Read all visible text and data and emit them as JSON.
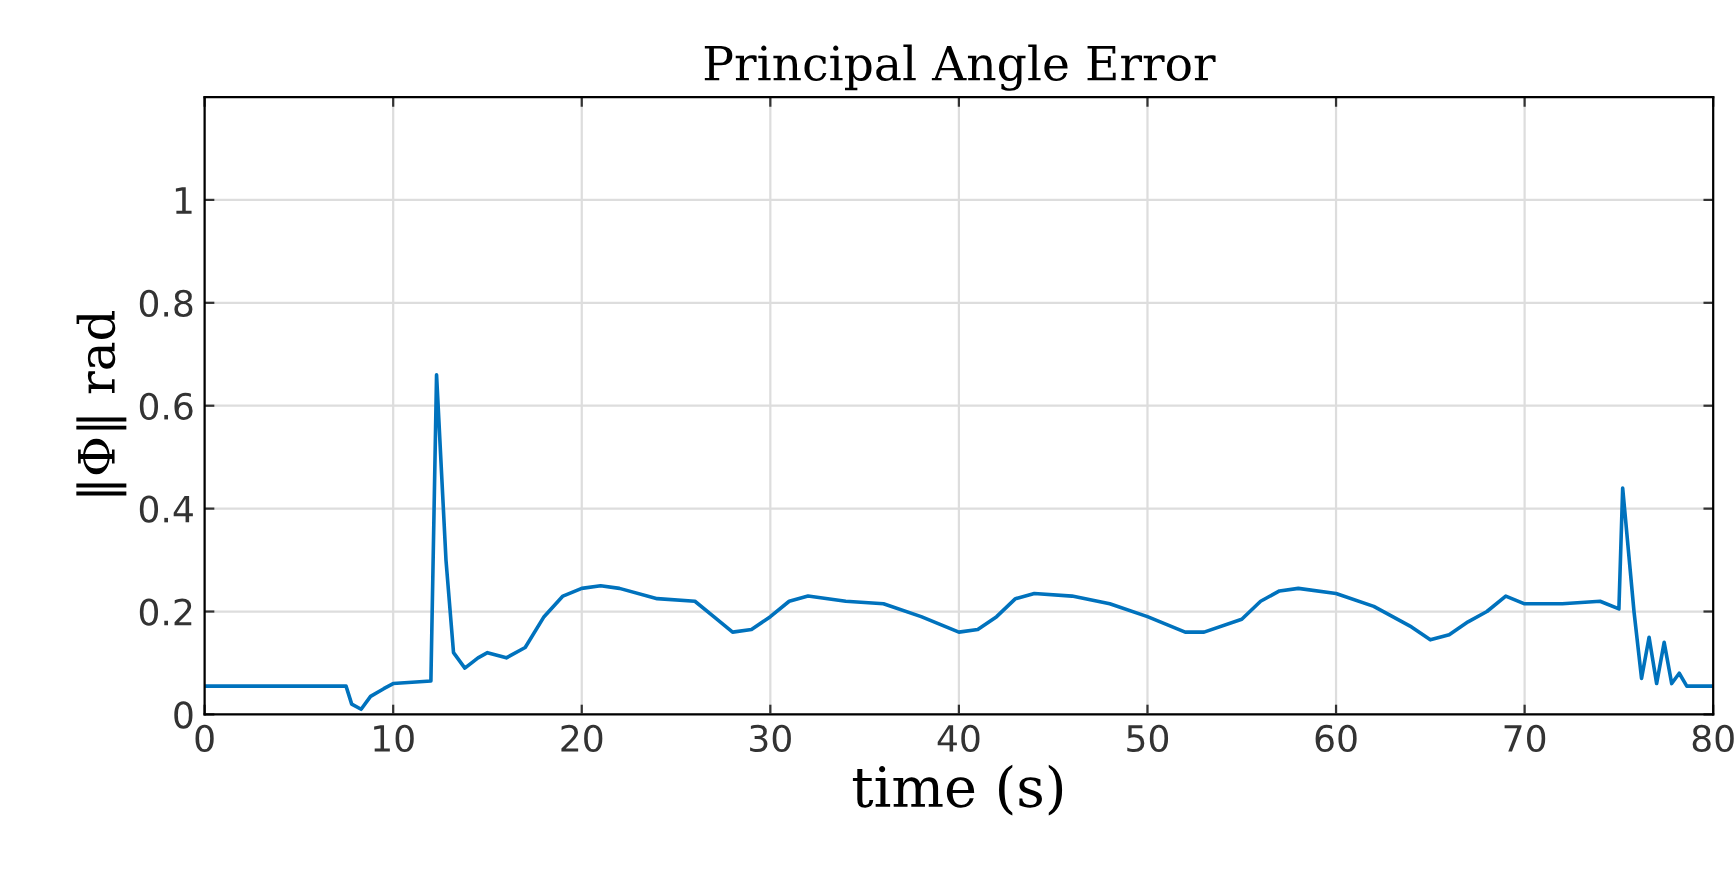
{
  "chart_data": {
    "type": "line",
    "title": "Principal Angle Error",
    "xlabel": "time (s)",
    "ylabel": "‖Φ‖ rad",
    "series": [
      {
        "color": "#0072bd",
        "x": [
          0,
          7.5,
          7.8,
          8.3,
          8.8,
          9.5,
          10,
          12,
          12.3,
          12.8,
          13.2,
          13.8,
          14.5,
          15,
          16,
          17,
          18,
          19,
          20,
          21,
          22,
          24,
          26,
          27,
          28,
          29,
          30,
          31,
          32,
          34,
          36,
          38,
          40,
          41,
          42,
          43,
          44,
          46,
          48,
          50,
          52,
          53,
          55,
          56,
          57,
          58,
          60,
          62,
          64,
          65,
          66,
          67,
          68,
          69,
          70,
          72,
          74,
          75,
          75.2,
          75.8,
          76.2,
          76.6,
          77,
          77.4,
          77.8,
          78.2,
          78.6,
          80
        ],
        "values": [
          0.055,
          0.055,
          0.02,
          0.01,
          0.035,
          0.05,
          0.06,
          0.065,
          0.66,
          0.3,
          0.12,
          0.09,
          0.11,
          0.12,
          0.11,
          0.13,
          0.19,
          0.23,
          0.245,
          0.25,
          0.245,
          0.225,
          0.22,
          0.19,
          0.16,
          0.165,
          0.19,
          0.22,
          0.23,
          0.22,
          0.215,
          0.19,
          0.16,
          0.165,
          0.19,
          0.225,
          0.235,
          0.23,
          0.215,
          0.19,
          0.16,
          0.16,
          0.185,
          0.22,
          0.24,
          0.245,
          0.235,
          0.21,
          0.17,
          0.145,
          0.155,
          0.18,
          0.2,
          0.23,
          0.215,
          0.215,
          0.22,
          0.205,
          0.44,
          0.2,
          0.07,
          0.15,
          0.06,
          0.14,
          0.06,
          0.08,
          0.055,
          0.055
        ]
      }
    ],
    "xlim": [
      0,
      80
    ],
    "xticks": [
      0,
      10,
      20,
      30,
      40,
      50,
      60,
      70,
      80
    ],
    "ylim": [
      0,
      1.2
    ],
    "yticks": [
      0,
      0.2,
      0.4,
      0.6,
      0.8,
      1
    ],
    "grid": true,
    "marker": "none",
    "line_style": "solid"
  }
}
